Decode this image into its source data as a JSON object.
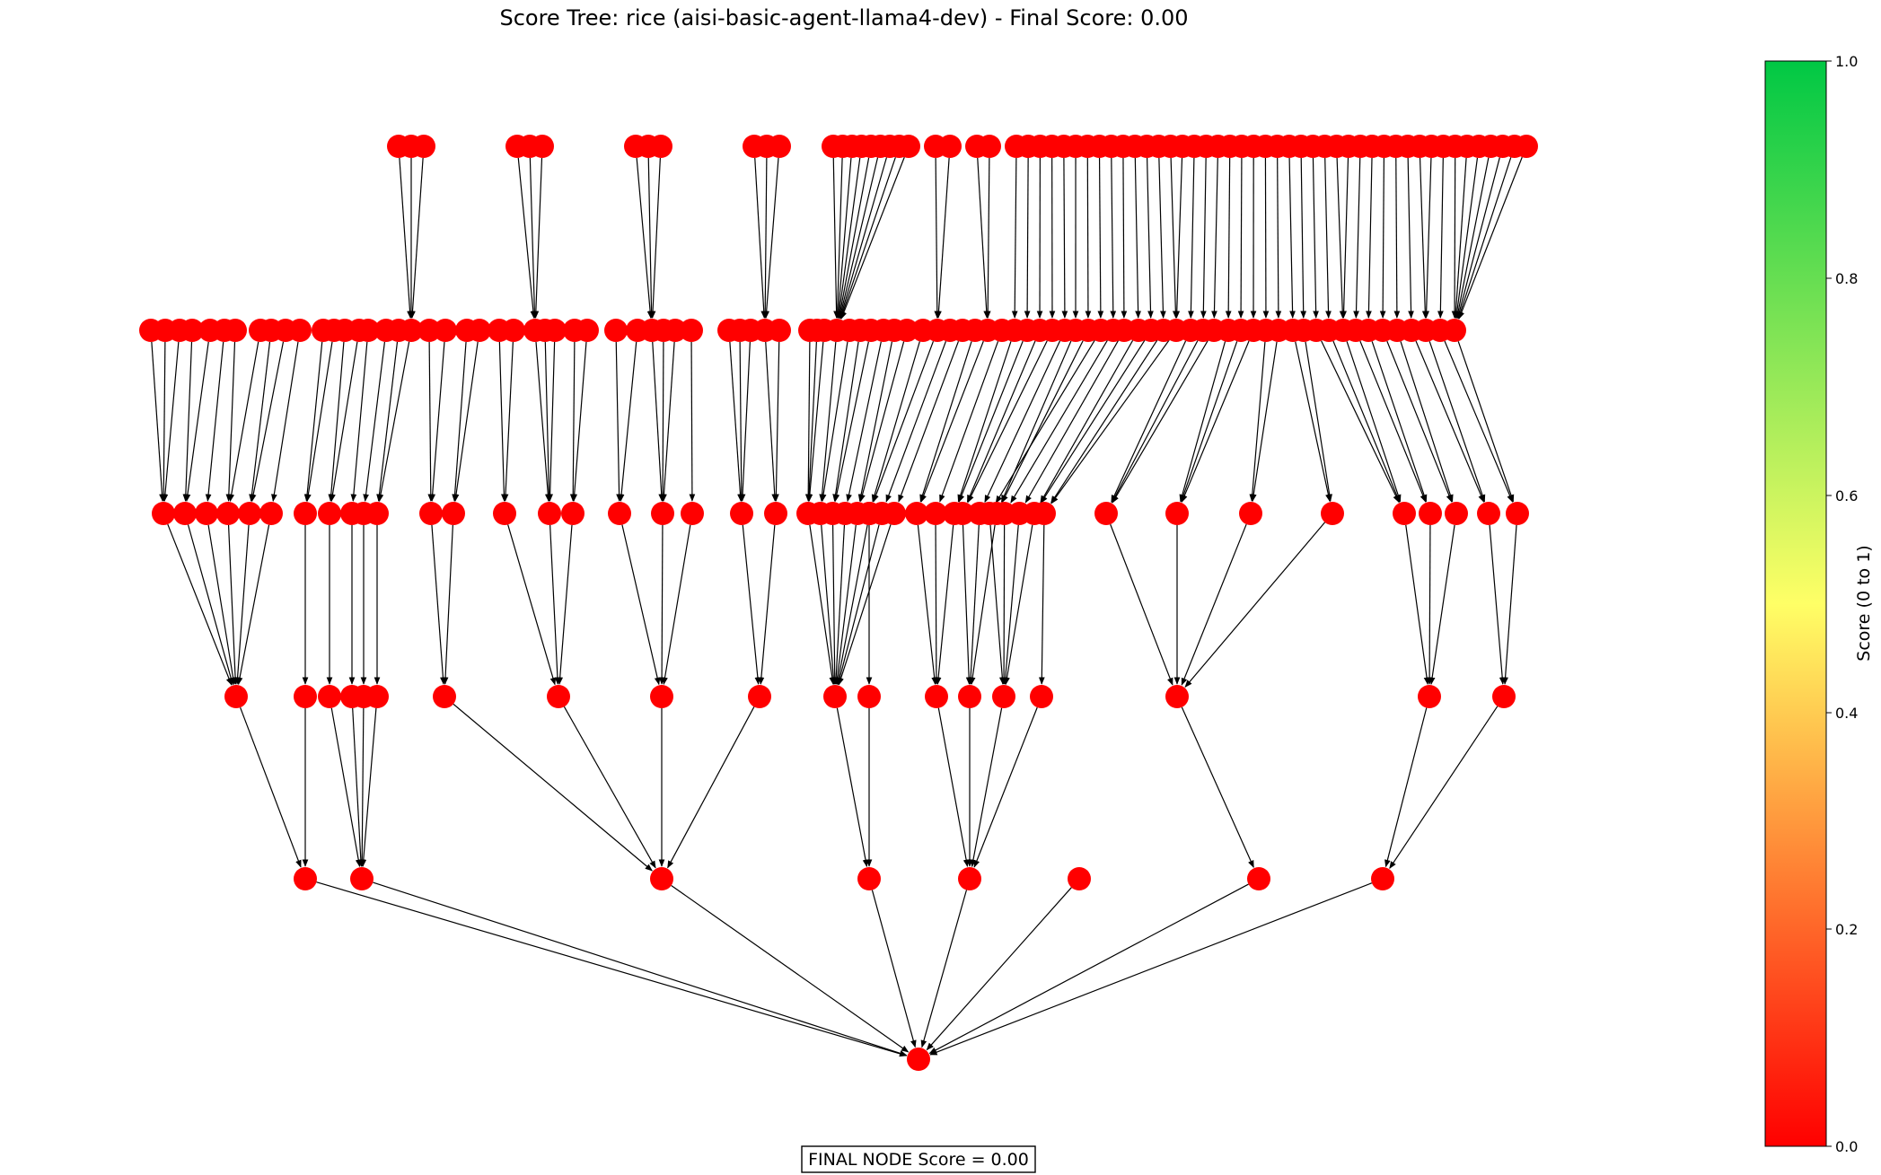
{
  "title": "Score Tree: rice (aisi-basic-agent-llama4-dev) - Final Score: 0.00",
  "final_box": "FINAL NODE Score = 0.00",
  "colors": {
    "node": "#ff0000",
    "edge": "#000000",
    "scale_low": "#ff0000",
    "scale_mid": "#ffff66",
    "scale_high": "#00c844"
  },
  "colorbar": {
    "label": "Score (0 to 1)",
    "ticks": [
      "0.0",
      "0.2",
      "0.4",
      "0.6",
      "0.8",
      "1.0"
    ]
  }
}
